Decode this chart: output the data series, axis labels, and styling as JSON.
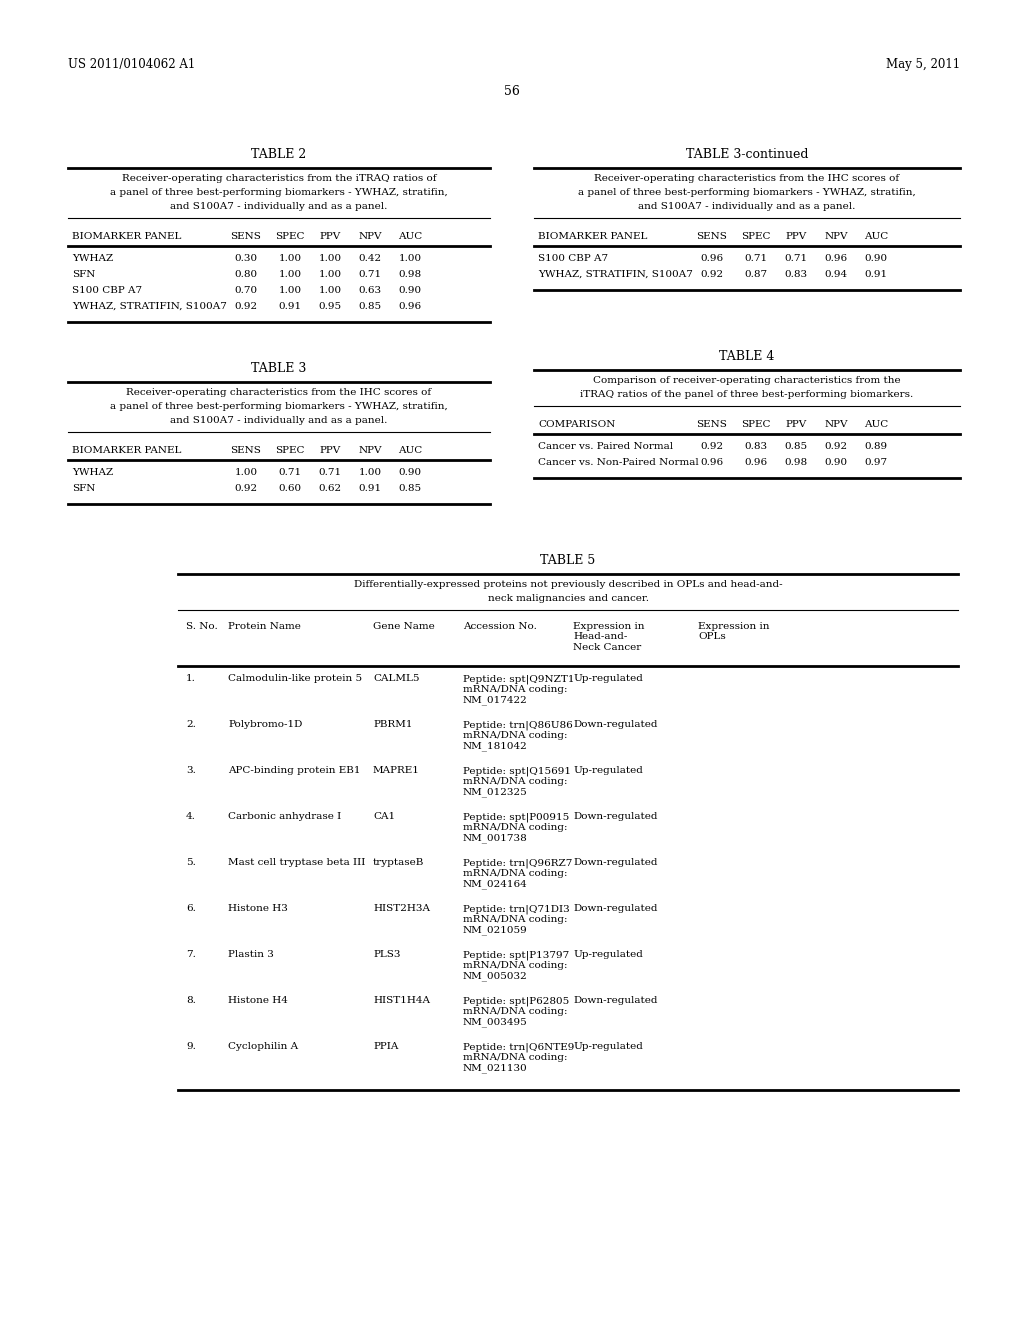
{
  "page_header_left": "US 2011/0104062 A1",
  "page_header_right": "May 5, 2011",
  "page_number": "56",
  "background_color": "#ffffff",
  "table2": {
    "title": "TABLE 2",
    "caption_lines": [
      "Receiver-operating characteristics from the iTRAQ ratios of",
      "a panel of three best-performing biomarkers - YWHAZ, stratifin,",
      "and S100A7 - individually and as a panel."
    ],
    "columns": [
      "BIOMARKER PANEL",
      "SENS",
      "SPEC",
      "PPV",
      "NPV",
      "AUC"
    ],
    "rows": [
      [
        "YWHAZ",
        "0.30",
        "1.00",
        "1.00",
        "0.42",
        "1.00"
      ],
      [
        "SFN",
        "0.80",
        "1.00",
        "1.00",
        "0.71",
        "0.98"
      ],
      [
        "S100 CBP A7",
        "0.70",
        "1.00",
        "1.00",
        "0.63",
        "0.90"
      ],
      [
        "YWHAZ, STRATIFIN, S100A7",
        "0.92",
        "0.91",
        "0.95",
        "0.85",
        "0.96"
      ]
    ]
  },
  "table3cont": {
    "title": "TABLE 3-continued",
    "caption_lines": [
      "Receiver-operating characteristics from the IHC scores of",
      "a panel of three best-performing biomarkers - YWHAZ, stratifin,",
      "and S100A7 - individually and as a panel."
    ],
    "columns": [
      "BIOMARKER PANEL",
      "SENS",
      "SPEC",
      "PPV",
      "NPV",
      "AUC"
    ],
    "rows": [
      [
        "S100 CBP A7",
        "0.96",
        "0.71",
        "0.71",
        "0.96",
        "0.90"
      ],
      [
        "YWHAZ, STRATIFIN, S100A7",
        "0.92",
        "0.87",
        "0.83",
        "0.94",
        "0.91"
      ]
    ]
  },
  "table3": {
    "title": "TABLE 3",
    "caption_lines": [
      "Receiver-operating characteristics from the IHC scores of",
      "a panel of three best-performing biomarkers - YWHAZ, stratifin,",
      "and S100A7 - individually and as a panel."
    ],
    "columns": [
      "BIOMARKER PANEL",
      "SENS",
      "SPEC",
      "PPV",
      "NPV",
      "AUC"
    ],
    "rows": [
      [
        "YWHAZ",
        "1.00",
        "0.71",
        "0.71",
        "1.00",
        "0.90"
      ],
      [
        "SFN",
        "0.92",
        "0.60",
        "0.62",
        "0.91",
        "0.85"
      ]
    ]
  },
  "table4": {
    "title": "TABLE 4",
    "caption_lines": [
      "Comparison of receiver-operating characteristics from the",
      "iTRAQ ratios of the panel of three best-performing biomarkers."
    ],
    "columns": [
      "COMPARISON",
      "SENS",
      "SPEC",
      "PPV",
      "NPV",
      "AUC"
    ],
    "rows": [
      [
        "Cancer vs. Paired Normal",
        "0.92",
        "0.83",
        "0.85",
        "0.92",
        "0.89"
      ],
      [
        "Cancer vs. Non-Paired Normal",
        "0.96",
        "0.96",
        "0.98",
        "0.90",
        "0.97"
      ]
    ]
  },
  "table5": {
    "title": "TABLE 5",
    "caption_lines": [
      "Differentially-expressed proteins not previously described in OPLs and head-and-",
      "neck malignancies and cancer."
    ],
    "col_headers": [
      "S. No.",
      "Protein Name",
      "Gene Name",
      "Accession No.",
      "Expression in\nHead-and-\nNeck Cancer",
      "Expression in\nOPLs"
    ],
    "rows": [
      [
        "1.",
        "Calmodulin-like protein 5",
        "CALML5",
        "Peptide: spt|Q9NZT1\nmRNA/DNA coding:\nNM_017422",
        "Up-regulated",
        ""
      ],
      [
        "2.",
        "Polybromo-1D",
        "PBRM1",
        "Peptide: trn|Q86U86\nmRNA/DNA coding:\nNM_181042",
        "Down-regulated",
        ""
      ],
      [
        "3.",
        "APC-binding protein EB1",
        "MAPRE1",
        "Peptide: spt|Q15691\nmRNA/DNA coding:\nNM_012325",
        "Up-regulated",
        ""
      ],
      [
        "4.",
        "Carbonic anhydrase I",
        "CA1",
        "Peptide: spt|P00915\nmRNA/DNA coding:\nNM_001738",
        "Down-regulated",
        ""
      ],
      [
        "5.",
        "Mast cell tryptase beta III",
        "tryptaseB",
        "Peptide: trn|Q96RZ7\nmRNA/DNA coding:\nNM_024164",
        "Down-regulated",
        ""
      ],
      [
        "6.",
        "Histone H3",
        "HIST2H3A",
        "Peptide: trn|Q71DI3\nmRNA/DNA coding:\nNM_021059",
        "Down-regulated",
        ""
      ],
      [
        "7.",
        "Plastin 3",
        "PLS3",
        "Peptide: spt|P13797\nmRNA/DNA coding:\nNM_005032",
        "Up-regulated",
        ""
      ],
      [
        "8.",
        "Histone H4",
        "HIST1H4A",
        "Peptide: spt|P62805\nmRNA/DNA coding:\nNM_003495",
        "Down-regulated",
        ""
      ],
      [
        "9.",
        "Cyclophilin A",
        "PPIA",
        "Peptide: trn|Q6NTE9\nmRNA/DNA coding:\nNM_021130",
        "Up-regulated",
        ""
      ]
    ]
  },
  "font_size_header": 8.5,
  "font_size_body": 7.5,
  "font_size_caption": 7.5,
  "font_size_page": 8.5
}
